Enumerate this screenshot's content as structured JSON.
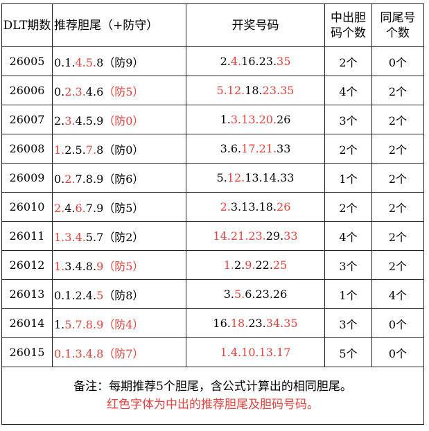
{
  "table": {
    "header": [
      "DLT期数",
      "推荐胆尾（+防守）",
      "开奖号码",
      "中出胆码个数",
      "同尾号个数"
    ],
    "rows": [
      [
        "26005",
        [
          {
            "text": "0.1.",
            "color": "#000000"
          },
          {
            "text": "4.5.",
            "color": "#e8403a"
          },
          {
            "text": "8（防9）",
            "color": "#000000"
          }
        ],
        [
          {
            "text": "2.",
            "color": "#000000"
          },
          {
            "text": "4.",
            "color": "#e8403a"
          },
          {
            "text": "16.23.",
            "color": "#000000"
          },
          {
            "text": "35",
            "color": "#e8403a"
          }
        ],
        "2个",
        "0个"
      ],
      [
        "26006",
        [
          {
            "text": "0.",
            "color": "#000000"
          },
          {
            "text": "2.3.",
            "color": "#e8403a"
          },
          {
            "text": "4.6",
            "color": "#000000"
          },
          {
            "text": "（防5）",
            "color": "#e8403a"
          }
        ],
        [
          {
            "text": "5.12.",
            "color": "#e8403a"
          },
          {
            "text": "18.",
            "color": "#000000"
          },
          {
            "text": "23.35",
            "color": "#e8403a"
          }
        ],
        "4个",
        "2个"
      ],
      [
        "26007",
        [
          {
            "text": "2.",
            "color": "#000000"
          },
          {
            "text": "3.",
            "color": "#e8403a"
          },
          {
            "text": "4.5.9",
            "color": "#000000"
          },
          {
            "text": "（防0）",
            "color": "#e8403a"
          }
        ],
        [
          {
            "text": "1.",
            "color": "#000000"
          },
          {
            "text": "3.13.20.",
            "color": "#e8403a"
          },
          {
            "text": "26",
            "color": "#000000"
          }
        ],
        "3个",
        "2个"
      ],
      [
        "26008",
        [
          {
            "text": "1.",
            "color": "#e8403a"
          },
          {
            "text": "2.5.",
            "color": "#000000"
          },
          {
            "text": "7.",
            "color": "#e8403a"
          },
          {
            "text": "8（防0）",
            "color": "#000000"
          }
        ],
        [
          {
            "text": "3.6.",
            "color": "#000000"
          },
          {
            "text": "17.21.",
            "color": "#e8403a"
          },
          {
            "text": "33",
            "color": "#000000"
          }
        ],
        "2个",
        "2个"
      ],
      [
        "26009",
        [
          {
            "text": "0.",
            "color": "#000000"
          },
          {
            "text": "2.",
            "color": "#e8403a"
          },
          {
            "text": "7.8.9（防6）",
            "color": "#000000"
          }
        ],
        [
          {
            "text": "5.",
            "color": "#000000"
          },
          {
            "text": "12.",
            "color": "#e8403a"
          },
          {
            "text": "13.14.33",
            "color": "#000000"
          }
        ],
        "1个",
        "2个"
      ],
      [
        "26010",
        [
          {
            "text": "2.",
            "color": "#e8403a"
          },
          {
            "text": "4.",
            "color": "#000000"
          },
          {
            "text": "6.",
            "color": "#e8403a"
          },
          {
            "text": "7.9（防5）",
            "color": "#000000"
          }
        ],
        [
          {
            "text": "2.",
            "color": "#e8403a"
          },
          {
            "text": "3.13.18.",
            "color": "#000000"
          },
          {
            "text": "26",
            "color": "#e8403a"
          }
        ],
        "2个",
        "2个"
      ],
      [
        "26011",
        [
          {
            "text": "1.3.4.",
            "color": "#e8403a"
          },
          {
            "text": "5.7（防2）",
            "color": "#000000"
          }
        ],
        [
          {
            "text": "14.21.23.",
            "color": "#e8403a"
          },
          {
            "text": "29.",
            "color": "#000000"
          },
          {
            "text": "33",
            "color": "#e8403a"
          }
        ],
        "4个",
        "2个"
      ],
      [
        "26012",
        [
          {
            "text": "1.",
            "color": "#e8403a"
          },
          {
            "text": "3.4.8.",
            "color": "#000000"
          },
          {
            "text": "9（防5）",
            "color": "#e8403a"
          }
        ],
        [
          {
            "text": "1.",
            "color": "#e8403a"
          },
          {
            "text": "2.",
            "color": "#000000"
          },
          {
            "text": "9.",
            "color": "#e8403a"
          },
          {
            "text": "22.",
            "color": "#000000"
          },
          {
            "text": "25",
            "color": "#e8403a"
          }
        ],
        "3个",
        "2个"
      ],
      [
        "26013",
        [
          {
            "text": "0.1.2.4.",
            "color": "#000000"
          },
          {
            "text": "5",
            "color": "#e8403a"
          },
          {
            "text": "（防8）",
            "color": "#000000"
          }
        ],
        [
          {
            "text": "3.",
            "color": "#000000"
          },
          {
            "text": "5.",
            "color": "#e8403a"
          },
          {
            "text": "6.23.26",
            "color": "#000000"
          }
        ],
        "1个",
        "4个"
      ],
      [
        "26014",
        [
          {
            "text": "1.",
            "color": "#000000"
          },
          {
            "text": "5.7.8.9（防4）",
            "color": "#e8403a"
          }
        ],
        [
          {
            "text": "16.",
            "color": "#000000"
          },
          {
            "text": "18.",
            "color": "#e8403a"
          },
          {
            "text": "23.",
            "color": "#000000"
          },
          {
            "text": "34.35",
            "color": "#e8403a"
          }
        ],
        "3个",
        "0个"
      ],
      [
        "26015",
        [
          {
            "text": "0.1.3.4.8（防7）",
            "color": "#e8403a"
          }
        ],
        [
          {
            "text": "1.4.10.13.17",
            "color": "#e8403a"
          }
        ],
        "5个",
        "0个"
      ]
    ],
    "notes": [
      {
        "text": "备注：每期推荐5个胆尾，含公式计算出的相同胆尾。",
        "color": "#000000"
      },
      {
        "text": "红色字体为中出的推荐胆尾及胆码号码。",
        "color": "#e8403a"
      }
    ]
  }
}
